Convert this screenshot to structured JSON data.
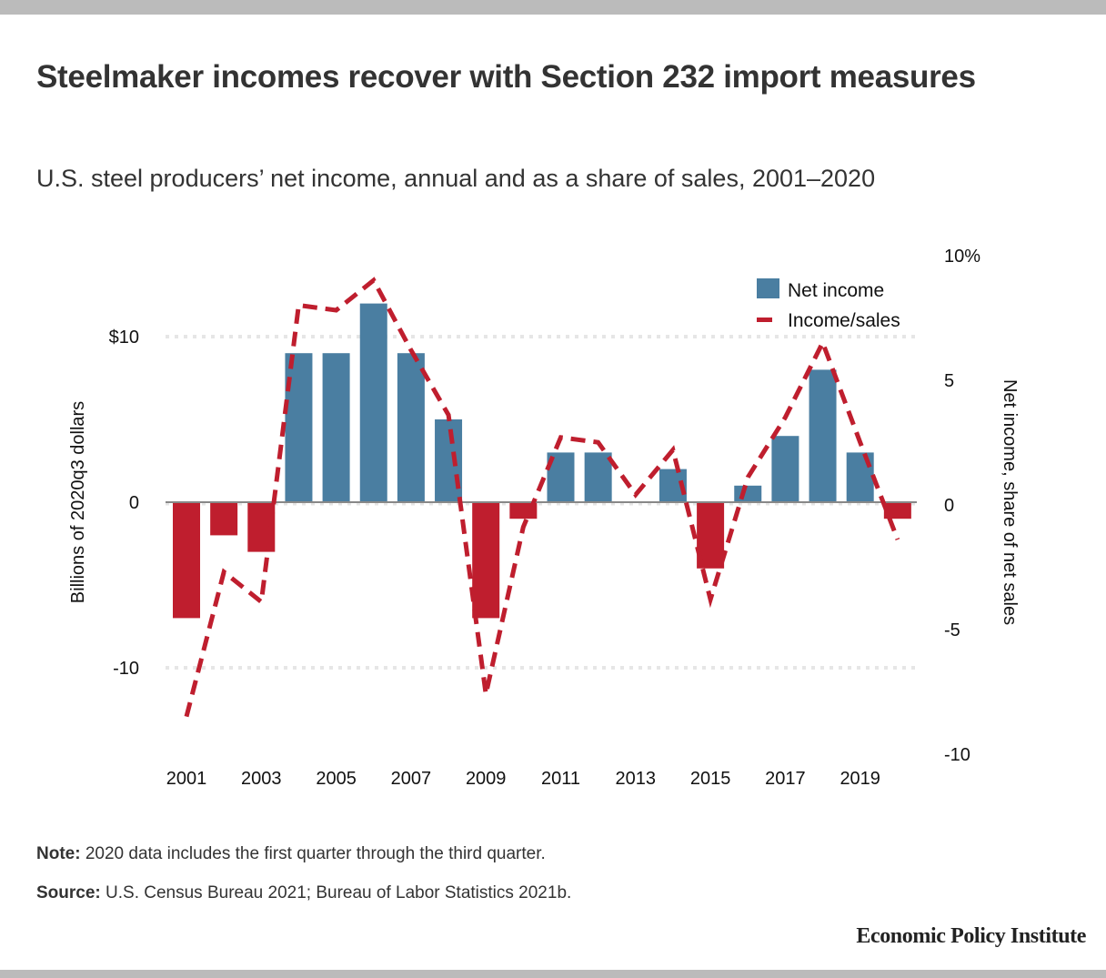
{
  "header": {
    "title": "Steelmaker incomes recover with Section 232 import measures",
    "subtitle": "U.S. steel producers’ net income, annual and as a share of sales, 2001–2020"
  },
  "footer": {
    "note_label": "Note:",
    "note_text": " 2020 data includes the first quarter through the third quarter.",
    "source_label": "Source:",
    "source_text": " U.S. Census Bureau 2021; Bureau of Labor Statistics 2021b.",
    "brand": "Economic Policy Institute"
  },
  "colors": {
    "positive_bar": "#4a7ea1",
    "negative_bar": "#bf1e2e",
    "line": "#bf1e2e",
    "gridline": "#e6e6e6",
    "zero_line": "#888888"
  },
  "chart_data": {
    "type": "bar",
    "title": "Steelmaker incomes recover with Section 232 import measures",
    "subtitle": "U.S. steel producers’ net income, annual and as a share of sales, 2001–2020",
    "categories": [
      "2001",
      "2002",
      "2003",
      "2004",
      "2005",
      "2006",
      "2007",
      "2008",
      "2009",
      "2010",
      "2011",
      "2012",
      "2013",
      "2014",
      "2015",
      "2016",
      "2017",
      "2018",
      "2019",
      "2020"
    ],
    "x_tick_labels": [
      "2001",
      "2003",
      "2005",
      "2007",
      "2009",
      "2011",
      "2013",
      "2015",
      "2017",
      "2019"
    ],
    "series": [
      {
        "name": "Net income",
        "type": "bar",
        "axis": "left",
        "values": [
          -7,
          -2,
          -3,
          9,
          9,
          12,
          9,
          5,
          -7,
          -1,
          3,
          3,
          0,
          2,
          -4,
          1,
          4,
          8,
          3,
          -1
        ]
      },
      {
        "name": "Income/sales",
        "type": "line",
        "style": "dashed",
        "axis": "right",
        "values": [
          -8.6,
          -2.8,
          -4.0,
          7.9,
          7.7,
          8.9,
          6.1,
          3.5,
          -7.7,
          -1.0,
          2.6,
          2.4,
          0.3,
          2.1,
          -3.9,
          1.0,
          3.4,
          6.4,
          2.4,
          -1.5
        ]
      }
    ],
    "left_axis": {
      "label": "Billions of 2020q3 dollars",
      "ticks": [
        10,
        0,
        -10
      ],
      "tick_labels": [
        "$10",
        "0",
        "-10"
      ],
      "range": [
        -13.5,
        15
      ]
    },
    "right_axis": {
      "label": "Net income, share of net sales",
      "ticks": [
        10,
        5,
        0,
        -5,
        -10
      ],
      "tick_labels": [
        "10%",
        "5",
        "0",
        "-5",
        "-10"
      ],
      "range": [
        -10,
        10
      ]
    },
    "gridlines": "horizontal dotted at left ticks",
    "legend": {
      "position": "top-right",
      "entries": [
        {
          "label": "Net income",
          "symbol": "square"
        },
        {
          "label": "Income/sales",
          "symbol": "dash"
        }
      ]
    },
    "xlabel": "",
    "ylabel": "Billions of 2020q3 dollars",
    "y2label": "Net income, share of net sales"
  }
}
